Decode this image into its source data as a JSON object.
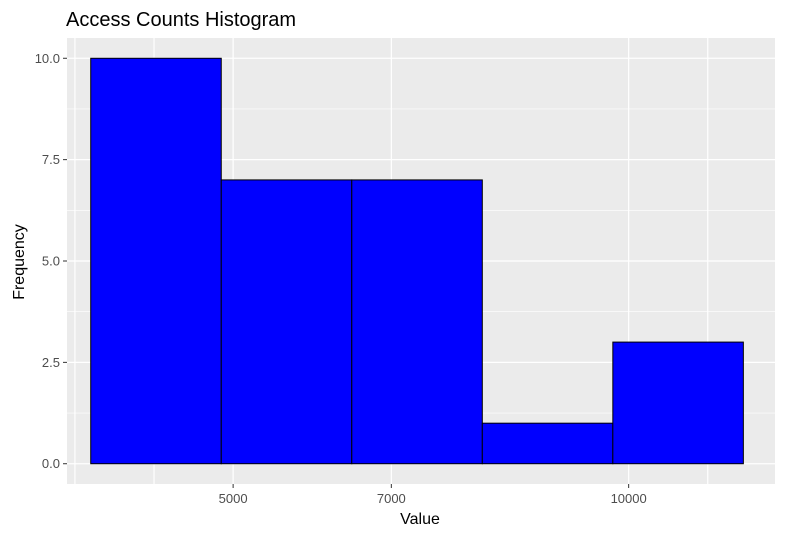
{
  "chart_data": {
    "type": "bar",
    "subtype": "histogram",
    "title": "Access Counts Histogram",
    "xlabel": "Value",
    "ylabel": "Frequency",
    "bins": [
      {
        "x0": 3200,
        "x1": 4850,
        "count": 10
      },
      {
        "x0": 4850,
        "x1": 6500,
        "count": 7
      },
      {
        "x0": 6500,
        "x1": 8150,
        "count": 7
      },
      {
        "x0": 8150,
        "x1": 9800,
        "count": 1
      },
      {
        "x0": 9800,
        "x1": 11450,
        "count": 3
      }
    ],
    "xlim": [
      2900,
      11850
    ],
    "ylim": [
      -0.5,
      10.5
    ],
    "x_ticks": [
      {
        "value": 5000,
        "label": "5000"
      },
      {
        "value": 7000,
        "label": "7000"
      },
      {
        "value": 10000,
        "label": "10000"
      }
    ],
    "x_grid_values": [
      3000,
      4000,
      5000,
      7000,
      10000,
      11000
    ],
    "y_ticks": [
      {
        "value": 0,
        "label": "0.0"
      },
      {
        "value": 2.5,
        "label": "2.5"
      },
      {
        "value": 5,
        "label": "5.0"
      },
      {
        "value": 7.5,
        "label": "7.5"
      },
      {
        "value": 10,
        "label": "10.0"
      }
    ],
    "grid": true,
    "legend": "none",
    "colors": {
      "bar_fill": "#0000ff",
      "bar_outline": "#000000",
      "panel_background": "#ebebeb",
      "grid_major": "#ffffff",
      "tick_label": "#4d4d4d"
    }
  }
}
